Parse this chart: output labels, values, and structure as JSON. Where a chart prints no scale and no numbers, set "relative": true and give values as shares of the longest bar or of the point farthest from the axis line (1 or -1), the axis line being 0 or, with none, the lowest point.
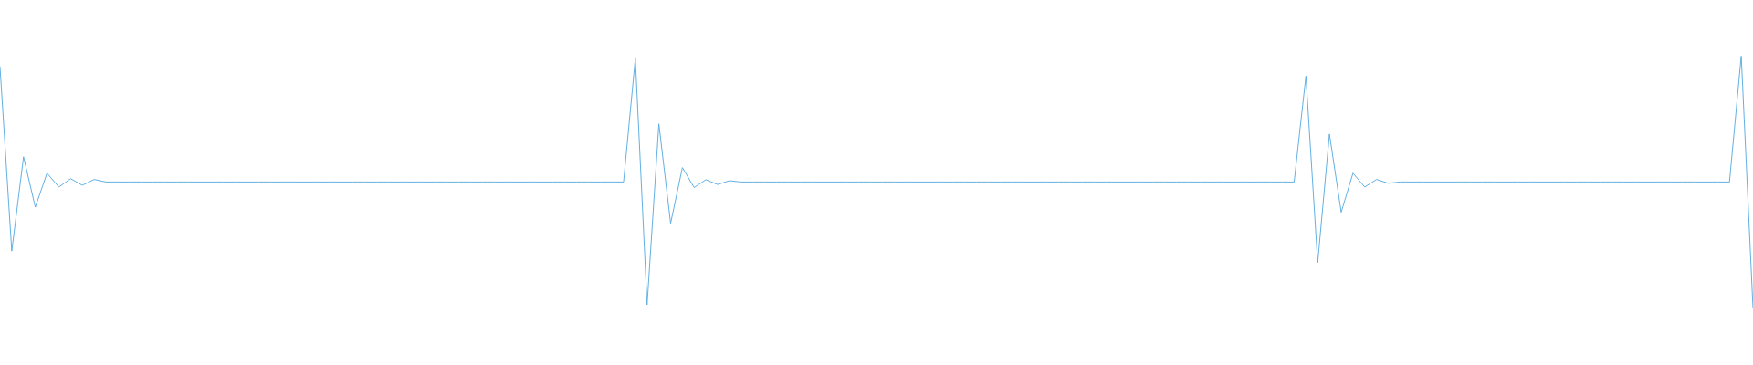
{
  "chart_data": {
    "type": "line",
    "relative": true,
    "legend": false,
    "marker": "none",
    "line_style": "solid",
    "categories": [
      null,
      null,
      null,
      null,
      null,
      null,
      null,
      null,
      null,
      null,
      null,
      null,
      null,
      null,
      null,
      null,
      null,
      null,
      null,
      null,
      null,
      null,
      null,
      null,
      null,
      null,
      null,
      null,
      null,
      null,
      null,
      null,
      null,
      null,
      null,
      null,
      null,
      null,
      null,
      null,
      null,
      null,
      null,
      null,
      null,
      null,
      null,
      null,
      null,
      null,
      null,
      null,
      null,
      null,
      null,
      null,
      null,
      null,
      null,
      null,
      null,
      null,
      null,
      null,
      null,
      null,
      null,
      null,
      null,
      null,
      null,
      null,
      null,
      null,
      null,
      null,
      null,
      null,
      null,
      null,
      null,
      null,
      null,
      null,
      null,
      null,
      null,
      null,
      null,
      null,
      null,
      null,
      null,
      null,
      null,
      null,
      null,
      null,
      null,
      null,
      null,
      null,
      null,
      null,
      null,
      null,
      null,
      null,
      null,
      null,
      null,
      null,
      null,
      null,
      null,
      null,
      null,
      null,
      null,
      null,
      null,
      null,
      null,
      null,
      null,
      null,
      null,
      null,
      null,
      null,
      null,
      null,
      null,
      null,
      null,
      null,
      null,
      null,
      null,
      null,
      null,
      null,
      null,
      null,
      null,
      null,
      null,
      null,
      null,
      null
    ],
    "series": [
      {
        "color": "#5dade2",
        "values": [
          0.956,
          0.226,
          0.6,
          0.4,
          0.535,
          0.48,
          0.513,
          0.487,
          0.51,
          0.5,
          0.5,
          0.5,
          0.5,
          0.5,
          0.5,
          0.5,
          0.5,
          0.5,
          0.5,
          0.5,
          0.5,
          0.5,
          0.5,
          0.5,
          0.5,
          0.5,
          0.5,
          0.5,
          0.5,
          0.5,
          0.5,
          0.5,
          0.5,
          0.5,
          0.5,
          0.5,
          0.5,
          0.5,
          0.5,
          0.5,
          0.5,
          0.5,
          0.5,
          0.5,
          0.5,
          0.5,
          0.5,
          0.5,
          0.5,
          0.5,
          0.5,
          0.5,
          0.5,
          0.5,
          0.99,
          0.013,
          0.73,
          0.336,
          0.557,
          0.478,
          0.509,
          0.49,
          0.505,
          0.5,
          0.5,
          0.5,
          0.5,
          0.5,
          0.5,
          0.5,
          0.5,
          0.5,
          0.5,
          0.5,
          0.5,
          0.5,
          0.5,
          0.5,
          0.5,
          0.5,
          0.5,
          0.5,
          0.5,
          0.5,
          0.5,
          0.5,
          0.5,
          0.5,
          0.5,
          0.5,
          0.5,
          0.5,
          0.5,
          0.5,
          0.5,
          0.5,
          0.5,
          0.5,
          0.5,
          0.5,
          0.5,
          0.5,
          0.5,
          0.5,
          0.5,
          0.5,
          0.5,
          0.5,
          0.5,
          0.5,
          0.5,
          0.92,
          0.18,
          0.69,
          0.38,
          0.535,
          0.48,
          0.51,
          0.495,
          0.5,
          0.5,
          0.5,
          0.5,
          0.5,
          0.5,
          0.5,
          0.5,
          0.5,
          0.5,
          0.5,
          0.5,
          0.5,
          0.5,
          0.5,
          0.5,
          0.5,
          0.5,
          0.5,
          0.5,
          0.5,
          0.5,
          0.5,
          0.5,
          0.5,
          0.5,
          0.5,
          0.5,
          0.5,
          1,
          0
        ]
      }
    ]
  }
}
